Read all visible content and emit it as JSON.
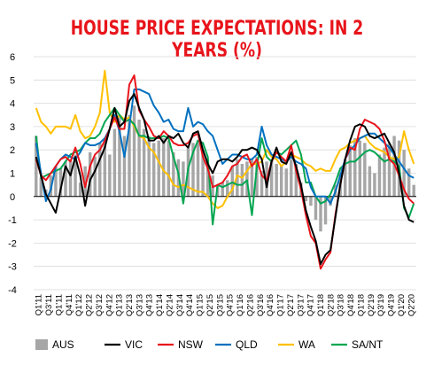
{
  "chart_data": {
    "type": "bar+line",
    "title": "HOUSE PRICE EXPECTATIONS: IN 2 YEARS (%)",
    "ylim": [
      -4,
      6
    ],
    "yticks": [
      "6",
      "5",
      "4",
      "3",
      "2",
      "1",
      "0",
      "-1",
      "-2",
      "-3",
      "-4"
    ],
    "categories": [
      "Q1'11",
      "Q3'11",
      "Q1'11",
      "Q4'11",
      "Q1'12",
      "Q2'12",
      "Q3'12",
      "Q4'12",
      "Q1'13",
      "Q2'13",
      "Q3'13",
      "Q4'13",
      "Q1'14",
      "Q2'14",
      "Q3'14",
      "Q4'14",
      "Q1'15",
      "Q2'15",
      "Q3'15",
      "Q4'15",
      "Q1'16",
      "Q2'16",
      "Q3'16",
      "Q4'16",
      "Q1'17",
      "Q2'17",
      "Q3'17",
      "Q4'17",
      "Q1'18",
      "Q2'18",
      "Q3'18",
      "Q4'18",
      "Q1'18",
      "Q2'19",
      "Q3'19",
      "Q4'19",
      "Q1'20",
      "Q2'20"
    ],
    "grid": true,
    "legend_position": "bottom",
    "x": [
      0,
      1,
      2,
      3,
      4,
      5,
      6,
      7,
      8,
      9,
      10,
      11,
      12,
      13,
      14,
      15,
      16,
      17,
      18,
      19,
      20,
      21,
      22,
      23,
      24,
      25,
      26,
      27,
      28,
      29,
      30,
      31,
      32,
      33,
      34,
      35,
      36,
      37,
      38,
      39,
      40,
      41,
      42,
      43,
      44,
      45,
      46,
      47,
      48,
      49,
      50,
      51,
      52,
      53,
      54,
      55,
      56,
      57,
      58,
      59,
      60,
      61,
      62,
      63,
      64,
      65,
      66,
      67,
      68,
      69,
      70,
      71,
      72,
      73,
      74,
      75,
      76,
      77
    ],
    "series": [
      {
        "name": "AUS",
        "type": "bar",
        "color": "#a6a6a6",
        "values": [
          2.6,
          0.8,
          0.3,
          0.9,
          1.3,
          1.2,
          1.5,
          1.6,
          1.8,
          0.6,
          1.3,
          1.9,
          1.7,
          2.3,
          2.5,
          1.8,
          2.9,
          3.4,
          2.6,
          3.5,
          3.9,
          3.3,
          2.9,
          2.6,
          2.3,
          2.4,
          2.5,
          2.4,
          1.9,
          1.6,
          1.5,
          2.1,
          2.3,
          2.4,
          2.0,
          1.4,
          0.9,
          0.5,
          0.6,
          0.7,
          1.3,
          1.6,
          1.4,
          1.5,
          1.6,
          1.7,
          1.1,
          1.5,
          1.6,
          1.4,
          1.3,
          1.2,
          1.6,
          1.4,
          0.6,
          -0.2,
          -0.4,
          -1.0,
          -1.5,
          -1.2,
          -0.4,
          0.5,
          1.0,
          1.6,
          2.2,
          2.5,
          2.4,
          2.3,
          1.3,
          1.0,
          1.8,
          2.1,
          2.3,
          2.6,
          2.4,
          2.0,
          1.2,
          0.5
        ]
      },
      {
        "name": "VIC",
        "type": "line",
        "color": "#000000",
        "values": [
          1.7,
          0.9,
          0.1,
          -0.3,
          -0.7,
          0.3,
          1.3,
          0.9,
          1.7,
          0.9,
          -0.4,
          0.7,
          1.1,
          1.6,
          2.1,
          2.9,
          3.8,
          3.0,
          3.2,
          4.1,
          4.4,
          3.8,
          3.3,
          2.4,
          2.4,
          2.6,
          2.3,
          2.6,
          2.5,
          2.7,
          2.3,
          2.1,
          2.7,
          2.8,
          2.0,
          1.4,
          1.0,
          1.5,
          1.6,
          1.6,
          1.5,
          1.7,
          2.0,
          2.0,
          2.1,
          2.0,
          1.6,
          0.4,
          1.5,
          2.1,
          1.5,
          1.4,
          1.9,
          1.3,
          0.5,
          -0.6,
          -1.3,
          -1.9,
          -2.9,
          -2.5,
          -2.3,
          -0.9,
          0.5,
          1.6,
          2.4,
          3.0,
          3.1,
          3.0,
          2.6,
          2.5,
          2.6,
          2.7,
          2.3,
          1.9,
          1.0,
          -0.4,
          -1.0,
          -1.1
        ]
      },
      {
        "name": "NSW",
        "type": "line",
        "color": "#e8141b",
        "values": [
          1.6,
          0.9,
          0.7,
          1.0,
          1.3,
          1.6,
          1.7,
          1.5,
          2.1,
          1.4,
          0.4,
          1.3,
          1.8,
          2.0,
          2.4,
          2.9,
          3.4,
          2.9,
          2.9,
          4.8,
          5.2,
          3.7,
          3.3,
          3.0,
          2.6,
          2.5,
          2.8,
          2.6,
          2.3,
          2.2,
          2.2,
          2.3,
          2.6,
          2.7,
          1.7,
          1.2,
          0.4,
          0.5,
          0.6,
          0.9,
          1.3,
          1.4,
          1.7,
          1.8,
          1.3,
          1.6,
          0.9,
          0.7,
          1.5,
          1.9,
          1.7,
          1.5,
          2.2,
          1.1,
          0.3,
          -0.8,
          -1.7,
          -2.0,
          -3.1,
          -2.7,
          -2.4,
          -0.8,
          0.5,
          1.6,
          2.1,
          2.0,
          2.9,
          3.3,
          3.2,
          3.1,
          2.9,
          2.4,
          1.6,
          1.4,
          0.9,
          0.3,
          -0.1,
          -0.3
        ]
      },
      {
        "name": "QLD",
        "type": "line",
        "color": "#0070c0",
        "values": [
          2.3,
          1.0,
          -0.2,
          0.3,
          1.3,
          1.6,
          1.8,
          1.7,
          1.6,
          1.9,
          2.3,
          2.2,
          2.2,
          2.3,
          2.5,
          2.9,
          3.5,
          2.8,
          1.7,
          3.0,
          4.6,
          4.6,
          4.5,
          4.4,
          3.9,
          3.6,
          3.2,
          3.3,
          2.9,
          2.8,
          2.8,
          3.8,
          3.0,
          3.2,
          3.1,
          2.8,
          2.6,
          2.0,
          1.4,
          1.6,
          1.8,
          1.8,
          1.7,
          1.6,
          1.6,
          1.8,
          3.0,
          2.2,
          1.8,
          1.7,
          1.6,
          1.5,
          1.7,
          1.5,
          1.4,
          1.2,
          0.4,
          0.0,
          0.0,
          0.0,
          -0.3,
          0.2,
          0.9,
          1.6,
          2.0,
          2.2,
          2.5,
          2.6,
          2.7,
          2.7,
          2.5,
          2.3,
          2.1,
          1.8,
          1.5,
          1.2,
          0.9,
          0.8
        ]
      },
      {
        "name": "WA",
        "type": "line",
        "color": "#ffc000",
        "values": [
          3.8,
          3.2,
          3.0,
          2.7,
          3.0,
          3.0,
          3.0,
          2.9,
          3.5,
          2.8,
          2.5,
          2.6,
          3.0,
          3.6,
          5.4,
          3.6,
          3.2,
          3.5,
          3.3,
          3.4,
          3.0,
          2.6,
          2.5,
          2.1,
          1.9,
          1.5,
          1.1,
          0.9,
          0.5,
          0.4,
          0.5,
          0.4,
          0.3,
          0.2,
          0.2,
          0.0,
          -0.3,
          -0.5,
          -0.4,
          0.0,
          0.3,
          0.9,
          0.8,
          1.1,
          1.4,
          1.4,
          1.5,
          2.0,
          1.7,
          1.6,
          1.3,
          1.5,
          1.8,
          1.7,
          1.6,
          1.4,
          1.3,
          1.1,
          1.2,
          1.1,
          1.1,
          1.6,
          2.0,
          2.1,
          2.3,
          2.4,
          2.5,
          2.6,
          2.3,
          2.1,
          2.0,
          1.9,
          1.7,
          1.6,
          1.7,
          2.8,
          2.0,
          1.4
        ]
      },
      {
        "name": "SA/NT",
        "type": "line",
        "color": "#00a651",
        "values": [
          2.6,
          0.8,
          0.9,
          1.0,
          1.1,
          1.2,
          1.5,
          1.8,
          1.9,
          2.0,
          2.3,
          2.5,
          2.5,
          2.7,
          3.2,
          3.5,
          3.8,
          3.5,
          3.2,
          3.3,
          3.1,
          2.6,
          2.6,
          2.5,
          2.5,
          2.5,
          2.6,
          2.5,
          1.7,
          1.0,
          -0.3,
          1.2,
          1.9,
          2.4,
          2.3,
          1.7,
          -1.2,
          0.5,
          0.4,
          0.5,
          0.6,
          0.5,
          0.5,
          0.7,
          -0.8,
          1.3,
          2.5,
          1.7,
          1.5,
          1.9,
          1.8,
          2.0,
          2.2,
          2.4,
          1.8,
          0.6,
          0.6,
          0.0,
          -0.3,
          -0.2,
          0.1,
          0.6,
          1.2,
          1.4,
          1.5,
          1.5,
          1.7,
          1.9,
          2.0,
          1.9,
          1.7,
          1.5,
          1.6,
          1.5,
          1.3,
          -0.5,
          -0.9,
          -0.3
        ]
      }
    ]
  },
  "title_text": "HOUSE PRICE EXPECTATIONS: IN 2 YEARS (%)"
}
